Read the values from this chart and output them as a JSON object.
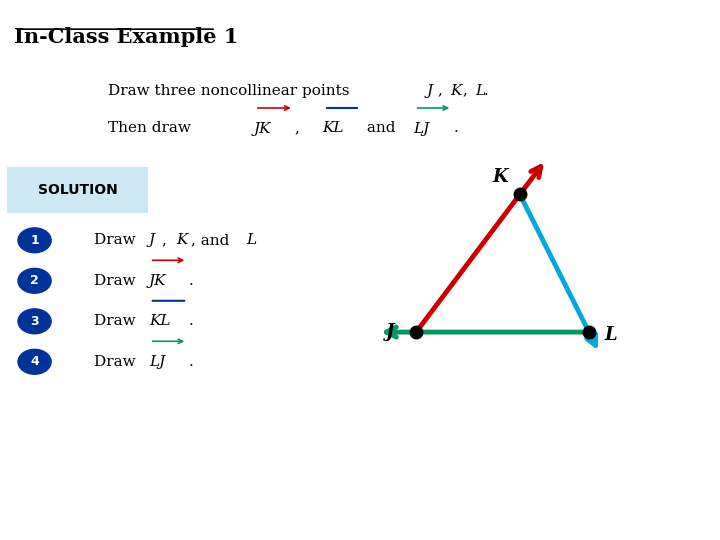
{
  "title": "In-Class Example 1",
  "solution_label": "SOLUTION",
  "points": {
    "J": [
      0.38,
      0.38
    ],
    "K": [
      0.62,
      0.72
    ],
    "L": [
      0.78,
      0.38
    ]
  },
  "color_JK": "#cc0000",
  "color_KL": "#00aadd",
  "color_LJ": "#009966",
  "bg_color": "#ffffff",
  "solution_bg": "#cce8f4",
  "step_circle_color": "#003399"
}
